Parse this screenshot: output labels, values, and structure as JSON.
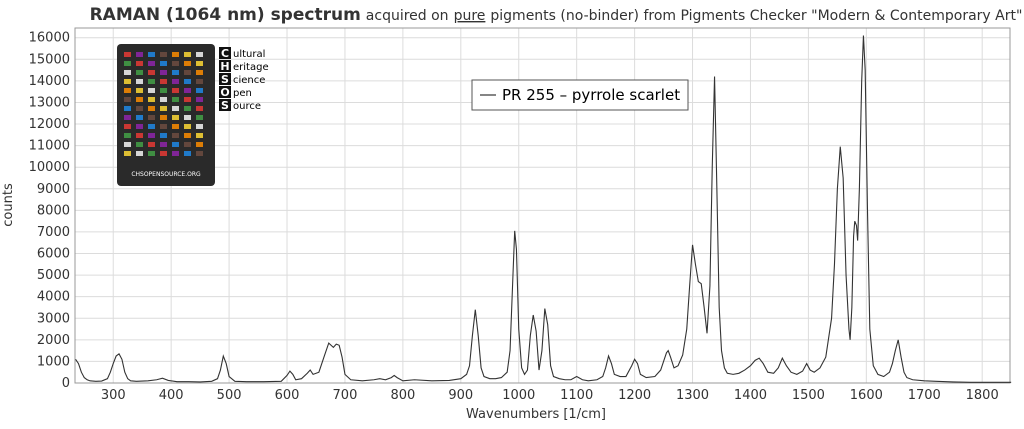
{
  "chart_data": {
    "type": "line",
    "title_parts": [
      "RAMAN (1064 nm) spectrum",
      "acquired on",
      "pure",
      "pigments (no-binder) from Pigments Checker \"Modern & Contemporary Art\""
    ],
    "xlabel": "Wavenumbers [1/cm]",
    "ylabel": "counts",
    "x": [
      235,
      240,
      245,
      250,
      255,
      260,
      270,
      280,
      290,
      295,
      300,
      305,
      310,
      315,
      320,
      325,
      330,
      340,
      360,
      375,
      385,
      395,
      410,
      430,
      450,
      470,
      480,
      485,
      490,
      495,
      500,
      510,
      530,
      560,
      590,
      600,
      605,
      610,
      615,
      625,
      635,
      640,
      645,
      655,
      665,
      672,
      680,
      685,
      690,
      695,
      700,
      710,
      730,
      750,
      760,
      770,
      780,
      785,
      790,
      800,
      820,
      850,
      880,
      900,
      910,
      915,
      920,
      925,
      930,
      935,
      940,
      950,
      960,
      970,
      980,
      985,
      990,
      993,
      996,
      1000,
      1005,
      1010,
      1015,
      1020,
      1025,
      1030,
      1035,
      1040,
      1045,
      1050,
      1055,
      1060,
      1070,
      1080,
      1090,
      1100,
      1110,
      1120,
      1135,
      1145,
      1150,
      1155,
      1160,
      1165,
      1175,
      1185,
      1195,
      1200,
      1205,
      1210,
      1220,
      1235,
      1245,
      1250,
      1255,
      1258,
      1262,
      1268,
      1275,
      1283,
      1290,
      1295,
      1300,
      1305,
      1310,
      1315,
      1320,
      1325,
      1330,
      1334,
      1338,
      1342,
      1346,
      1350,
      1355,
      1360,
      1370,
      1380,
      1390,
      1400,
      1408,
      1415,
      1422,
      1430,
      1440,
      1448,
      1455,
      1462,
      1470,
      1480,
      1490,
      1497,
      1503,
      1510,
      1520,
      1530,
      1540,
      1545,
      1550,
      1555,
      1560,
      1565,
      1570,
      1572,
      1575,
      1578,
      1580,
      1583,
      1585,
      1588,
      1592,
      1595,
      1598,
      1602,
      1606,
      1612,
      1620,
      1630,
      1640,
      1645,
      1650,
      1655,
      1660,
      1665,
      1670,
      1680,
      1700,
      1720,
      1750,
      1780,
      1810,
      1850
    ],
    "series": [
      {
        "name": "PR 255 – pyrrole scarlet",
        "color": "#333333",
        "values": [
          1100,
          900,
          500,
          250,
          150,
          100,
          80,
          90,
          200,
          500,
          900,
          1250,
          1350,
          1100,
          500,
          200,
          100,
          80,
          100,
          150,
          220,
          120,
          60,
          60,
          50,
          80,
          200,
          600,
          1250,
          900,
          300,
          80,
          60,
          60,
          80,
          350,
          550,
          400,
          150,
          200,
          450,
          600,
          400,
          500,
          1300,
          1850,
          1650,
          1800,
          1750,
          1200,
          400,
          150,
          100,
          150,
          200,
          150,
          250,
          350,
          250,
          100,
          150,
          100,
          120,
          200,
          400,
          800,
          2200,
          3400,
          2200,
          700,
          300,
          200,
          200,
          250,
          500,
          1500,
          5000,
          7050,
          6200,
          2500,
          700,
          400,
          600,
          2200,
          3150,
          2400,
          600,
          1500,
          3450,
          2700,
          800,
          300,
          200,
          150,
          150,
          300,
          150,
          100,
          150,
          300,
          700,
          1250,
          900,
          400,
          300,
          300,
          800,
          1100,
          900,
          400,
          250,
          300,
          600,
          1000,
          1400,
          1500,
          1200,
          700,
          800,
          1300,
          2500,
          4500,
          6400,
          5500,
          4700,
          4600,
          3500,
          2300,
          4500,
          10000,
          14200,
          9000,
          3500,
          1500,
          700,
          450,
          400,
          450,
          600,
          800,
          1050,
          1150,
          900,
          500,
          450,
          700,
          1150,
          800,
          500,
          400,
          550,
          900,
          600,
          500,
          700,
          1200,
          3000,
          5500,
          9000,
          10950,
          9500,
          5000,
          2500,
          2000,
          3500,
          6800,
          7500,
          7300,
          6600,
          9000,
          14000,
          16100,
          14500,
          8000,
          2500,
          800,
          400,
          300,
          500,
          900,
          1500,
          2000,
          1200,
          500,
          250,
          150,
          100,
          80,
          50,
          30,
          30,
          30
        ]
      }
    ],
    "xlim": [
      234,
      1848
    ],
    "ylim": [
      0,
      16450
    ],
    "xticks": [
      300,
      400,
      500,
      600,
      700,
      800,
      900,
      1000,
      1100,
      1200,
      1300,
      1400,
      1500,
      1600,
      1700,
      1800
    ],
    "yticks": [
      0,
      1000,
      2000,
      3000,
      4000,
      5000,
      6000,
      7000,
      8000,
      9000,
      10000,
      11000,
      12000,
      13000,
      14000,
      15000,
      16000
    ],
    "grid": true,
    "legend_position": "upper center"
  },
  "logo": {
    "letters": [
      "C",
      "H",
      "S",
      "O",
      "S"
    ],
    "words": [
      "ultural",
      "eritage",
      "cience",
      "pen",
      "ource"
    ],
    "caption": "CHSOPENSOURCE.ORG"
  }
}
